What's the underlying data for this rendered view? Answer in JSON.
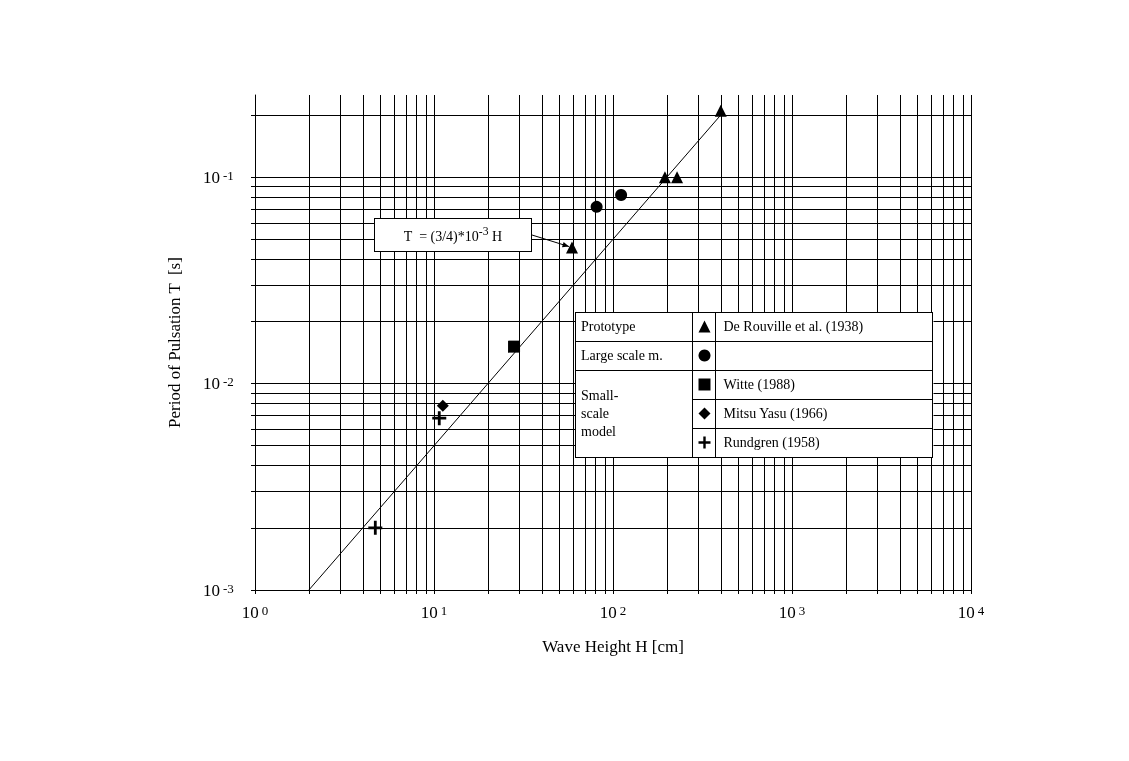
{
  "chart_data": {
    "type": "scatter",
    "xlabel": "Wave Height H [cm]",
    "ylabel": "Period of Pulsation T  [s]",
    "log": "xy",
    "grid": true,
    "legend": "right",
    "xlim": [
      1,
      10000
    ],
    "ylim": [
      0.001,
      0.25
    ],
    "xticks": [
      {
        "value": 1,
        "label": "10$^{0}$"
      },
      {
        "value": 2,
        "label": null
      },
      {
        "value": 3,
        "label": null
      },
      {
        "value": 4,
        "label": null
      },
      {
        "value": 5,
        "label": null
      },
      {
        "value": 6,
        "label": null
      },
      {
        "value": 7,
        "label": null
      },
      {
        "value": 8,
        "label": null
      },
      {
        "value": 9,
        "label": null
      },
      {
        "value": 10,
        "label": "10$^{1}$"
      },
      {
        "value": 20,
        "label": null
      },
      {
        "value": 30,
        "label": null
      },
      {
        "value": 40,
        "label": null
      },
      {
        "value": 50,
        "label": null
      },
      {
        "value": 60,
        "label": null
      },
      {
        "value": 70,
        "label": null
      },
      {
        "value": 80,
        "label": null
      },
      {
        "value": 90,
        "label": null
      },
      {
        "value": 100,
        "label": "10$^{2}$"
      },
      {
        "value": 200,
        "label": null
      },
      {
        "value": 300,
        "label": null
      },
      {
        "value": 400,
        "label": null
      },
      {
        "value": 500,
        "label": null
      },
      {
        "value": 600,
        "label": null
      },
      {
        "value": 700,
        "label": null
      },
      {
        "value": 800,
        "label": null
      },
      {
        "value": 900,
        "label": null
      },
      {
        "value": 1000,
        "label": "10$^{3}$"
      },
      {
        "value": 2000,
        "label": null
      },
      {
        "value": 3000,
        "label": null
      },
      {
        "value": 4000,
        "label": null
      },
      {
        "value": 5000,
        "label": null
      },
      {
        "value": 6000,
        "label": null
      },
      {
        "value": 7000,
        "label": null
      },
      {
        "value": 8000,
        "label": null
      },
      {
        "value": 9000,
        "label": null
      },
      {
        "value": 10000,
        "label": "10$^{4}$"
      }
    ],
    "yticks": [
      {
        "value": 0.001,
        "label": "10$^{-3}$"
      },
      {
        "value": 0.002,
        "label": null
      },
      {
        "value": 0.003,
        "label": null
      },
      {
        "value": 0.004,
        "label": null
      },
      {
        "value": 0.005,
        "label": null
      },
      {
        "value": 0.006,
        "label": null
      },
      {
        "value": 0.007,
        "label": null
      },
      {
        "value": 0.008,
        "label": null
      },
      {
        "value": 0.009,
        "label": null
      },
      {
        "value": 0.01,
        "label": "10$^{-2}$"
      },
      {
        "value": 0.02,
        "label": null
      },
      {
        "value": 0.03,
        "label": null
      },
      {
        "value": 0.04,
        "label": null
      },
      {
        "value": 0.05,
        "label": null
      },
      {
        "value": 0.06,
        "label": null
      },
      {
        "value": 0.07,
        "label": null
      },
      {
        "value": 0.08,
        "label": null
      },
      {
        "value": 0.09,
        "label": null
      },
      {
        "value": 0.1,
        "label": "10$^{-1}$"
      },
      {
        "value": 0.2,
        "label": null
      }
    ],
    "annotations": [
      "T  = (3/4)*10$^{-3}$ H",
      "Prototype",
      "Large scale m.",
      "Small-scale model"
    ],
    "series": [
      {
        "name": "De Rouville et al. (1938)",
        "color": "#000000",
        "marker": "triangle",
        "x": [
          59,
          195,
          228,
          400
        ],
        "values": [
          0.0456,
          0.1,
          0.1,
          0.21
        ]
      },
      {
        "color": "#000000",
        "marker": "circle",
        "x": [
          81,
          111
        ],
        "values": [
          0.0718,
          0.082
        ]
      },
      {
        "name": "Witte (1988)",
        "color": "#000000",
        "marker": "square",
        "x": [
          28
        ],
        "values": [
          0.0151
        ]
      },
      {
        "name": "Mitsu Yasu (1966)",
        "color": "#000000",
        "marker": "diamond",
        "x": [
          11.2
        ],
        "values": [
          0.0078
        ]
      },
      {
        "name": "Rundgren (1958)",
        "color": "#000000",
        "marker": "cross",
        "x": [
          4.7,
          10.7
        ],
        "values": [
          0.002,
          0.0068
        ]
      },
      {
        "type": "line",
        "color": "#000000",
        "marker": "none",
        "x": [
          2,
          400
        ],
        "values": [
          0.001,
          0.2
        ]
      }
    ]
  }
}
